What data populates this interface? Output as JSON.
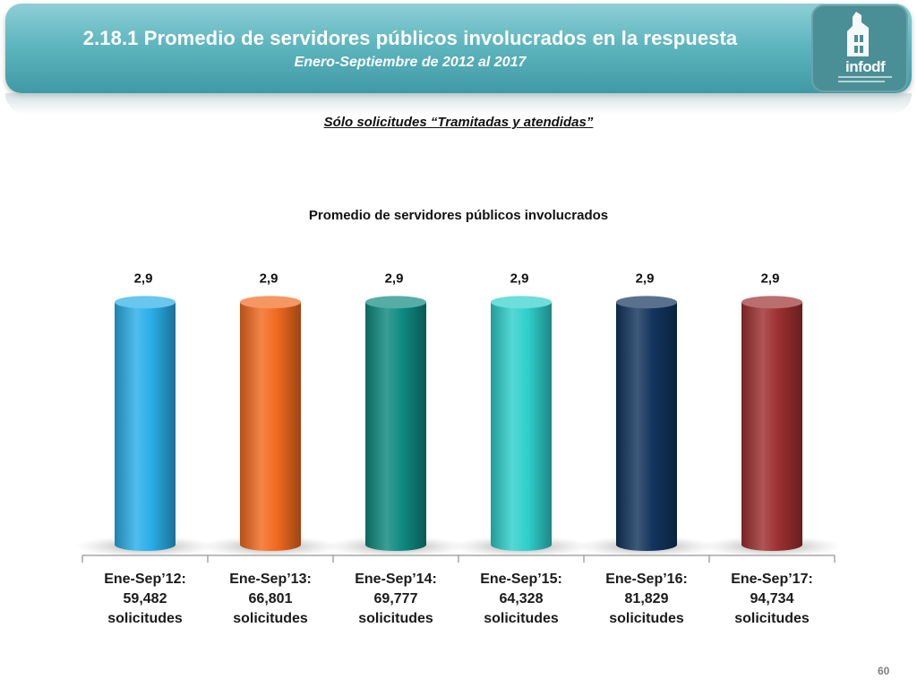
{
  "header": {
    "title": "2.18.1 Promedio de servidores públicos involucrados en la respuesta",
    "subtitle": "Enero-Septiembre de 2012 al 2017",
    "logo_text": "infodf"
  },
  "note": "Sólo solicitudes “Tramitadas y atendidas”",
  "page_number": "60",
  "chart_data": {
    "type": "bar",
    "title": "Promedio de servidores públicos involucrados",
    "categories": [
      [
        "Ene-Sep’12:",
        "59,482",
        "solicitudes"
      ],
      [
        "Ene-Sep’13:",
        "66,801",
        "solicitudes"
      ],
      [
        "Ene-Sep’14:",
        "69,777",
        "solicitudes"
      ],
      [
        "Ene-Sep’15:",
        "64,328",
        "solicitudes"
      ],
      [
        "Ene-Sep’16:",
        "81,829",
        "solicitudes"
      ],
      [
        "Ene-Sep’17:",
        "94,734",
        "solicitudes"
      ]
    ],
    "values": [
      2.9,
      2.9,
      2.9,
      2.9,
      2.9,
      2.9
    ],
    "data_labels": [
      "2,9",
      "2,9",
      "2,9",
      "2,9",
      "2,9",
      "2,9"
    ],
    "colors": [
      "#29aee8",
      "#f26a1f",
      "#0e8a80",
      "#2fd0cc",
      "#13345e",
      "#9e3030"
    ],
    "ylim": [
      0,
      3.3
    ],
    "grid": false,
    "legend": "none",
    "bar_style": "cylinder"
  }
}
